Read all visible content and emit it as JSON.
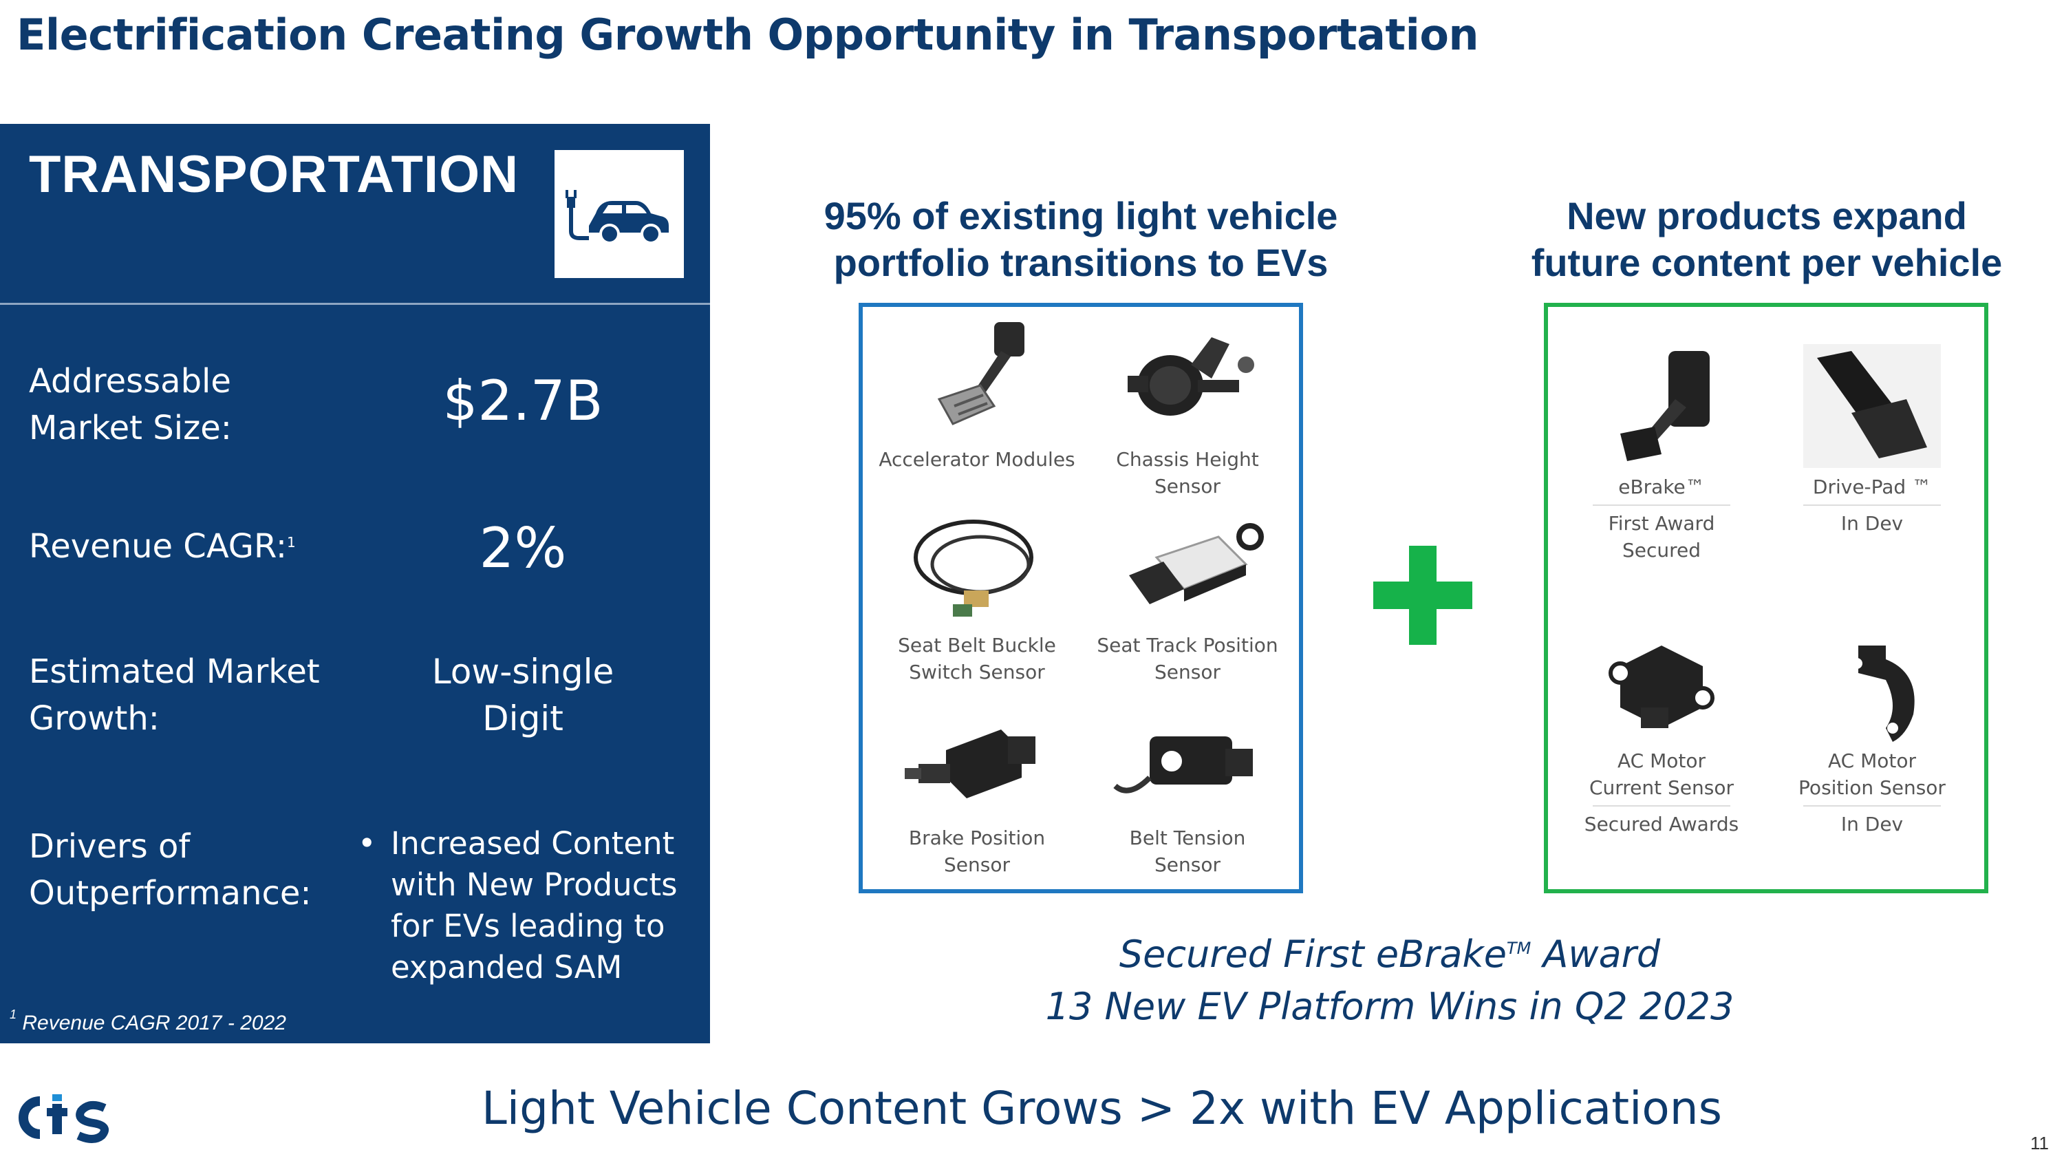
{
  "slide": {
    "title": "Electrification Creating Growth Opportunity in Transportation",
    "page_number": "11",
    "bottom_tagline": "Light Vehicle Content Grows > 2x with EV Applications",
    "logo_text": "cts"
  },
  "panel": {
    "heading": "TRANSPORTATION",
    "icon": "ev-car-plug-icon",
    "metrics": [
      {
        "label_line1": "Addressable",
        "label_line2": "Market Size:",
        "value": "$2.7B"
      },
      {
        "label": "Revenue CAGR:",
        "label_sup": "1",
        "value": "2%"
      },
      {
        "label_line1": "Estimated Market",
        "label_line2": "Growth:",
        "value_line1": "Low-single",
        "value_line2": "Digit"
      },
      {
        "label_line1": "Drivers of",
        "label_line2": "Outperformance:",
        "bullet": "•",
        "value_lines": [
          "Increased Content",
          "with New Products",
          "for EVs leading to",
          "expanded SAM"
        ]
      }
    ],
    "footnote_sup": "1",
    "footnote": "Revenue CAGR 2017 - 2022"
  },
  "existing": {
    "heading_line1": "95% of existing light vehicle",
    "heading_line2": "portfolio transitions to EVs",
    "border_color": "#1f78c1",
    "products": [
      {
        "line1": "Accelerator Modules",
        "icon": "accelerator-pedal-icon"
      },
      {
        "line1": "Chassis Height Sensor",
        "icon": "chassis-sensor-icon"
      },
      {
        "line1": "Seat Belt Buckle",
        "line2": "Switch Sensor",
        "icon": "cable-sensor-icon"
      },
      {
        "line1": "Seat Track Position",
        "line2": "Sensor",
        "icon": "seat-track-sensor-icon"
      },
      {
        "line1": "Brake Position",
        "line2": "Sensor",
        "icon": "brake-switch-icon"
      },
      {
        "line1": "Belt Tension",
        "line2": "Sensor",
        "icon": "belt-tension-sensor-icon"
      }
    ]
  },
  "new_products": {
    "heading_line1": "New products expand",
    "heading_line2": "future content per vehicle",
    "border_color": "#22b14c",
    "products": [
      {
        "name": "eBrake™",
        "status_line1": "First Award",
        "status_line2": "Secured",
        "icon": "ebrake-pedal-icon"
      },
      {
        "name": "Drive-Pad ™",
        "status_line1": "In Dev",
        "icon": "drive-pad-icon"
      },
      {
        "name_line1": "AC Motor",
        "name_line2": "Current Sensor",
        "status_line1": "Secured Awards",
        "icon": "current-sensor-icon"
      },
      {
        "name_line1": "AC Motor",
        "name_line2": "Position Sensor",
        "status_line1": "In Dev",
        "icon": "position-sensor-icon"
      }
    ]
  },
  "plus_color": "#16b24a",
  "award": {
    "line1_pre": "Secured First eBrake",
    "line1_sup": "TM",
    "line1_post": " Award",
    "line2": "13 New EV Platform Wins in Q2 2023"
  },
  "colors": {
    "navy": "#0d3d73",
    "title": "#0e3a6c",
    "green": "#22b14c",
    "blue": "#1f78c1"
  }
}
